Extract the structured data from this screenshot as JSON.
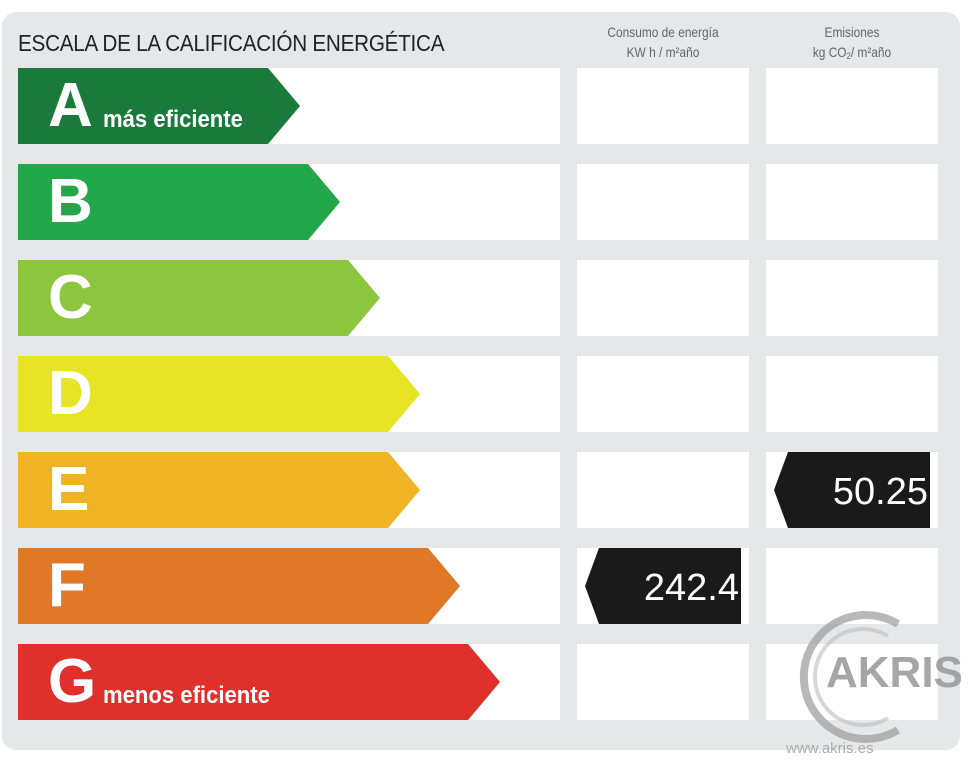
{
  "header": {
    "title": "ESCALA DE LA CALIFICACIÓN ENERGÉTICA",
    "consumo_line1": "Consumo de energía",
    "consumo_line2": "KW h / m²año",
    "emisiones_line1": "Emisiones",
    "emisiones_line2_prefix": "kg CO",
    "emisiones_line2_sub": "2",
    "emisiones_line2_suffix": "/ m²año"
  },
  "ratings": [
    {
      "letter": "A",
      "label": "más eficiente",
      "color": "#1a7a3c"
    },
    {
      "letter": "B",
      "label": "",
      "color": "#22a84a"
    },
    {
      "letter": "C",
      "label": "",
      "color": "#8cc63e"
    },
    {
      "letter": "D",
      "label": "",
      "color": "#e6e424"
    },
    {
      "letter": "E",
      "label": "",
      "color": "#f0b323"
    },
    {
      "letter": "F",
      "label": "",
      "color": "#e07828"
    },
    {
      "letter": "G",
      "label": "menos eficiente",
      "color": "#e0302b"
    }
  ],
  "consumo": {
    "rating": "F",
    "value": "242.4"
  },
  "emisiones": {
    "rating": "E",
    "value": "50.25"
  },
  "marker_color": "#1a1a1a",
  "watermark": {
    "brand": "AKRIS",
    "url": "www.akris.es"
  }
}
